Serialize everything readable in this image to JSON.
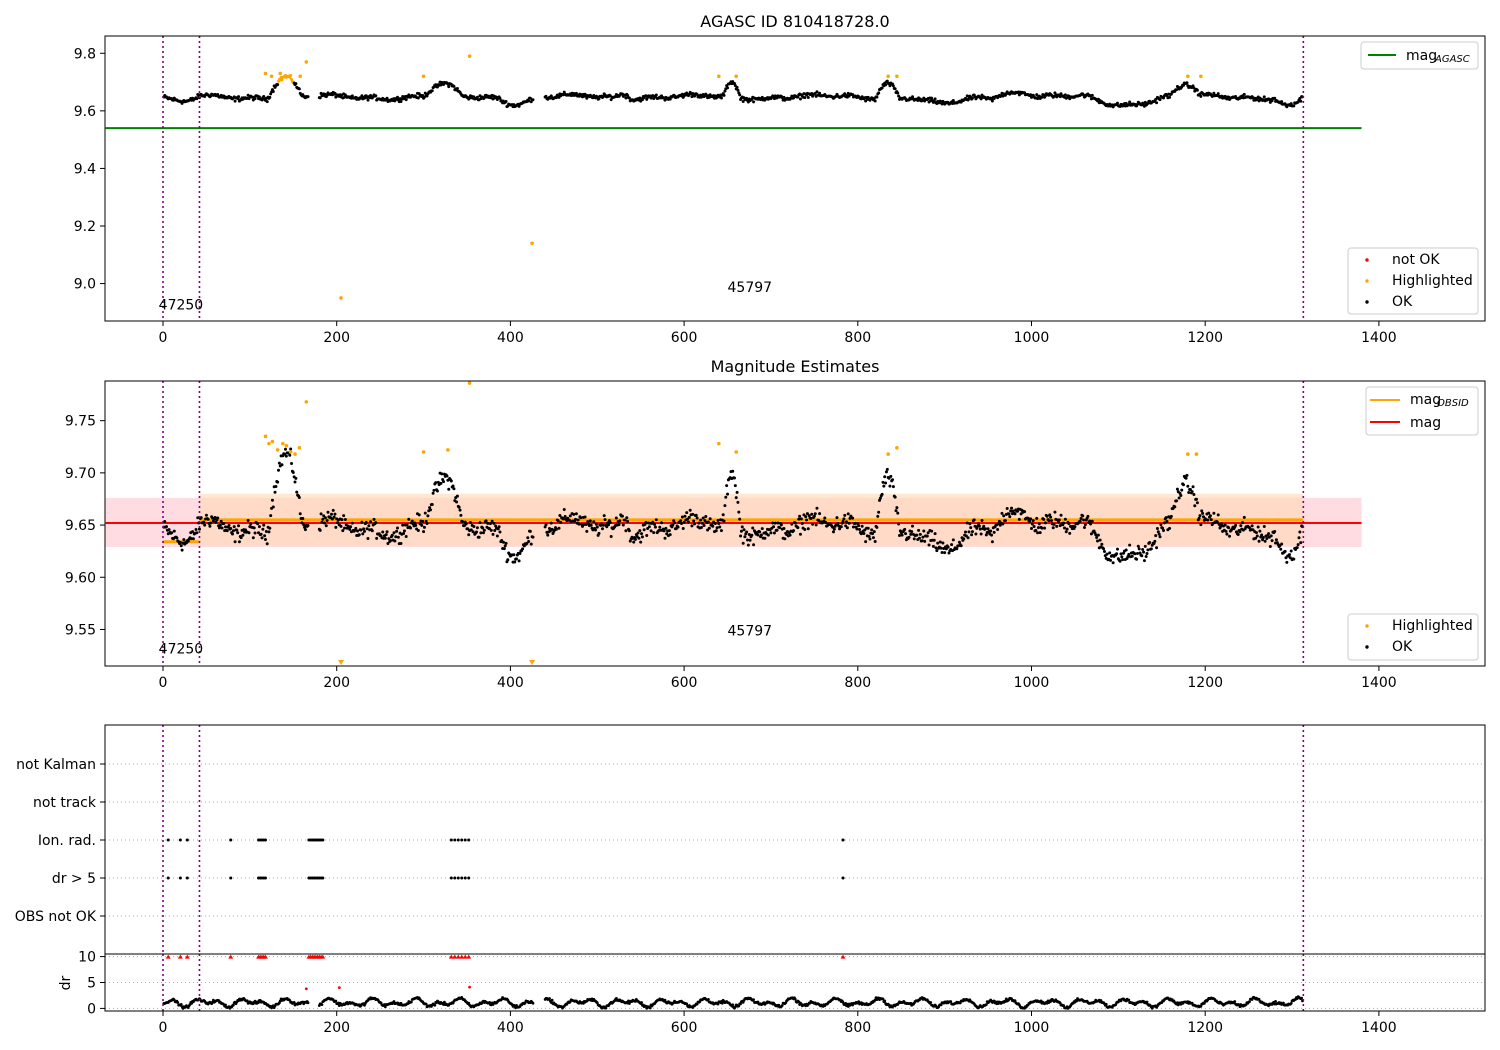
{
  "chart_data": [
    {
      "type": "scatter",
      "title": "AGASC ID 810418728.0",
      "xlim": [
        -66,
        1523
      ],
      "ylim": [
        8.87,
        9.86
      ],
      "xticks": [
        0,
        200,
        400,
        600,
        800,
        1000,
        1200,
        1400
      ],
      "yticks": [
        9.0,
        9.2,
        9.4,
        9.6,
        9.8
      ],
      "ytick_labels": [
        "9.0",
        "9.2",
        "9.4",
        "9.6",
        "9.8"
      ],
      "lines": [
        {
          "name": "mag",
          "sub": "AGASC",
          "color": "#008000",
          "y": 9.54,
          "x": [
            -66,
            1380
          ]
        }
      ],
      "vlines": [
        0,
        42,
        1313
      ],
      "vline_color": "#800080",
      "obsid_labels": [
        {
          "text": "47250",
          "x": -5,
          "y": 8.91
        },
        {
          "text": "45797",
          "x": 650,
          "y": 8.97
        }
      ],
      "points": {
        "highlighted": [
          [
            118,
            9.73
          ],
          [
            125,
            9.72
          ],
          [
            135,
            9.73
          ],
          [
            145,
            9.72
          ],
          [
            158,
            9.72
          ],
          [
            165,
            9.77
          ],
          [
            300,
            9.72
          ],
          [
            353,
            9.79
          ],
          [
            205,
            8.95
          ],
          [
            425,
            9.14
          ],
          [
            640,
            9.72
          ],
          [
            660,
            9.72
          ],
          [
            835,
            9.72
          ],
          [
            845,
            9.72
          ],
          [
            1180,
            9.72
          ],
          [
            1195,
            9.72
          ]
        ]
      },
      "legend": {
        "position": "top-right"
      },
      "legend2": {
        "position": "lower-right",
        "entries": [
          {
            "label": "not OK",
            "color": "#ff0000"
          },
          {
            "label": "Highlighted",
            "color": "#ffa500"
          },
          {
            "label": "OK",
            "color": "#000000"
          }
        ]
      }
    },
    {
      "type": "scatter",
      "title": "Magnitude Estimates",
      "xlim": [
        -66,
        1523
      ],
      "ylim": [
        9.515,
        9.788
      ],
      "xticks": [
        0,
        200,
        400,
        600,
        800,
        1000,
        1200,
        1400
      ],
      "yticks": [
        9.55,
        9.6,
        9.65,
        9.7,
        9.75
      ],
      "ytick_labels": [
        "9.55",
        "9.60",
        "9.65",
        "9.70",
        "9.75"
      ],
      "lines": [
        {
          "name": "mag",
          "sub": "OBSID",
          "color": "#ffa500",
          "segments": [
            [
              0,
              42,
              9.634
            ],
            [
              42,
              1313,
              9.655
            ]
          ]
        },
        {
          "name": "mag",
          "sub": "",
          "color": "#ff0000",
          "y": 9.652,
          "x": [
            -66,
            1380
          ]
        }
      ],
      "bands": [
        {
          "color": "#ffc0cb",
          "x": [
            -66,
            1380
          ],
          "y": [
            9.629,
            9.676
          ]
        },
        {
          "color": "#ffdab9",
          "x": [
            42,
            1313
          ],
          "y": [
            9.63,
            9.68
          ]
        }
      ],
      "vlines": [
        0,
        42,
        1313
      ],
      "obsid_labels": [
        {
          "text": "47250",
          "x": -5,
          "y": 9.527
        },
        {
          "text": "45797",
          "x": 650,
          "y": 9.544
        }
      ],
      "points": {
        "highlighted": [
          [
            118,
            9.735
          ],
          [
            122,
            9.728
          ],
          [
            126,
            9.73
          ],
          [
            132,
            9.722
          ],
          [
            138,
            9.728
          ],
          [
            142,
            9.726
          ],
          [
            147,
            9.72
          ],
          [
            152,
            9.718
          ],
          [
            157,
            9.724
          ],
          [
            165,
            9.768
          ],
          [
            300,
            9.72
          ],
          [
            328,
            9.722
          ],
          [
            353,
            9.786
          ],
          [
            640,
            9.728
          ],
          [
            660,
            9.72
          ],
          [
            835,
            9.718
          ],
          [
            845,
            9.724
          ],
          [
            1180,
            9.718
          ],
          [
            1190,
            9.718
          ]
        ],
        "highlighted_below": [
          205,
          425
        ]
      },
      "legend": {
        "position": "top-right"
      },
      "legend2": {
        "position": "lower-right",
        "entries": [
          {
            "label": "Highlighted",
            "color": "#ffa500"
          },
          {
            "label": "OK",
            "color": "#000000"
          }
        ]
      }
    },
    {
      "type": "scatter",
      "xlim": [
        -66,
        1523
      ],
      "categories": [
        "OBS not OK",
        "dr > 5",
        "Ion. rad.",
        "not track",
        "not Kalman"
      ],
      "flags": {
        "dr > 5": [
          6,
          20,
          28,
          78,
          110,
          112,
          114,
          116,
          118,
          168,
          170,
          172,
          174,
          176,
          178,
          180,
          182,
          184,
          332,
          336,
          340,
          344,
          348,
          352,
          783
        ],
        "Ion. rad.": [
          6,
          20,
          28,
          78,
          110,
          112,
          114,
          116,
          118,
          168,
          170,
          172,
          174,
          176,
          178,
          180,
          182,
          184,
          332,
          336,
          340,
          344,
          348,
          352,
          783
        ]
      }
    },
    {
      "type": "scatter",
      "xlim": [
        -66,
        1523
      ],
      "ylabel": "dr",
      "ylim": [
        -0.5,
        10.5
      ],
      "yticks": [
        0,
        5,
        10
      ],
      "xticks": [
        0,
        200,
        400,
        600,
        800,
        1000,
        1200,
        1400
      ],
      "clipped_at": 10,
      "points": {
        "not_ok_clipped": [
          6,
          20,
          28,
          78,
          110,
          112,
          114,
          116,
          118,
          168,
          170,
          172,
          174,
          176,
          178,
          180,
          182,
          184,
          332,
          336,
          340,
          344,
          348,
          352,
          783
        ],
        "not_ok": [
          [
            165,
            3.8
          ],
          [
            203,
            4.0
          ],
          [
            353,
            4.1
          ]
        ]
      }
    }
  ]
}
